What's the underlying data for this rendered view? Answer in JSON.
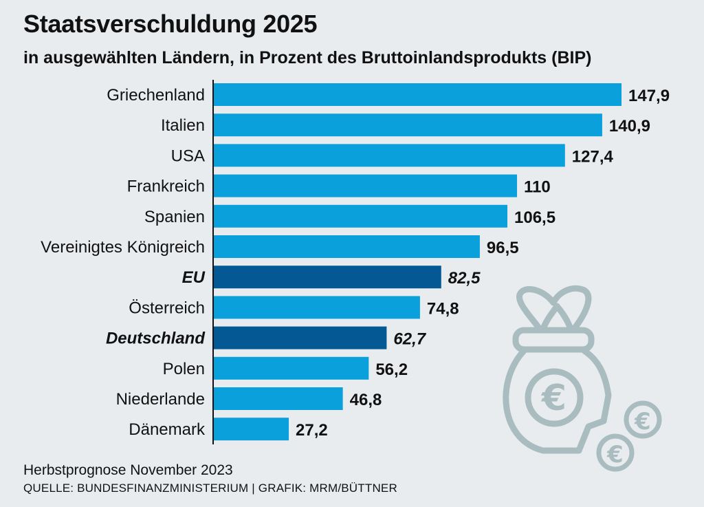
{
  "header": {
    "title": "Staatsverschuldung 2025",
    "subtitle": "in ausgewählten Ländern, in Prozent des Bruttoinlandsprodukts (BIP)"
  },
  "footer": {
    "note": "Herbstprognose November 2023",
    "source": "QUELLE: BUNDESFINANZMINISTERIUM | GRAFIK: MRM/BÜTTNER"
  },
  "colors": {
    "bar": "#0aa0dc",
    "bar_highlight": "#045893",
    "axis": "#111111",
    "icon": "#a9bcbf",
    "background": "#e9ecef"
  },
  "chart_data": {
    "type": "bar",
    "orientation": "horizontal",
    "title": "Staatsverschuldung 2025",
    "subtitle": "in ausgewählten Ländern, in Prozent des Bruttoinlandsprodukts (BIP)",
    "xlabel": "",
    "ylabel": "",
    "xlim": [
      0,
      150
    ],
    "grid": false,
    "categories": [
      "Griechenland",
      "Italien",
      "USA",
      "Frankreich",
      "Spanien",
      "Vereinigtes Königreich",
      "EU",
      "Österreich",
      "Deutschland",
      "Polen",
      "Niederlande",
      "Dänemark"
    ],
    "values": [
      147.9,
      140.9,
      127.4,
      110,
      106.5,
      96.5,
      82.5,
      74.8,
      62.7,
      56.2,
      46.8,
      27.2
    ],
    "labels": [
      "147,9",
      "140,9",
      "127,4",
      "110",
      "106,5",
      "96,5",
      "82,5",
      "74,8",
      "62,7",
      "56,2",
      "46,8",
      "27,2"
    ],
    "highlighted": [
      "EU",
      "Deutschland"
    ],
    "decoration": "money-bag-icon"
  }
}
